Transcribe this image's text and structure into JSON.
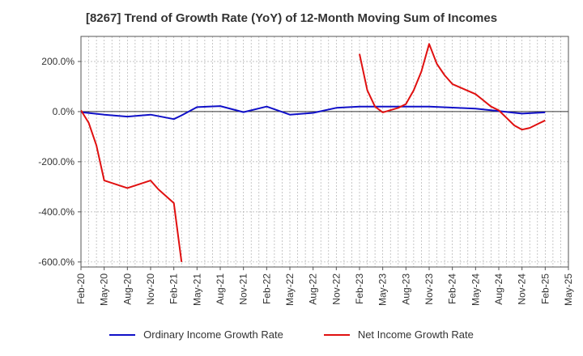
{
  "chart_data": {
    "type": "line",
    "title": "[8267]  Trend of Growth Rate (YoY) of 12-Month Moving Sum of Incomes",
    "xlabel": "",
    "ylabel": "",
    "ylim": [
      -620,
      300
    ],
    "y_ticks": [
      200,
      0,
      -200,
      -400,
      -600
    ],
    "y_tick_labels": [
      "200.0%",
      "0.0%",
      "-200.0%",
      "-400.0%",
      "-600.0%"
    ],
    "x_tick_labels": [
      "Feb-20",
      "May-20",
      "Aug-20",
      "Nov-20",
      "Feb-21",
      "May-21",
      "Aug-21",
      "Nov-21",
      "Feb-22",
      "May-22",
      "Aug-22",
      "Nov-22",
      "Feb-23",
      "May-23",
      "Aug-23",
      "Nov-23",
      "Feb-24",
      "May-24",
      "Aug-24",
      "Nov-24",
      "Feb-25",
      "May-25"
    ],
    "grid": true,
    "legend_position": "bottom",
    "series": [
      {
        "name": "Ordinary Income Growth Rate",
        "color": "#1010c8",
        "points": [
          [
            0,
            -2
          ],
          [
            3,
            -12
          ],
          [
            6,
            -20
          ],
          [
            9,
            -12
          ],
          [
            12,
            -30
          ],
          [
            13,
            -15
          ],
          [
            15,
            18
          ],
          [
            18,
            22
          ],
          [
            21,
            -2
          ],
          [
            24,
            20
          ],
          [
            27,
            -12
          ],
          [
            30,
            -5
          ],
          [
            33,
            15
          ],
          [
            36,
            20
          ],
          [
            39,
            20
          ],
          [
            42,
            20
          ],
          [
            45,
            20
          ],
          [
            48,
            16
          ],
          [
            51,
            12
          ],
          [
            54,
            2
          ],
          [
            57,
            -8
          ],
          [
            60,
            -3
          ]
        ]
      },
      {
        "name": "Net Income Growth Rate",
        "color": "#e01010",
        "points": [
          [
            0,
            5
          ],
          [
            1,
            -45
          ],
          [
            2,
            -135
          ],
          [
            3,
            -275
          ],
          [
            6,
            -305
          ],
          [
            9,
            -275
          ],
          [
            10,
            -310
          ],
          [
            12,
            -365
          ],
          [
            13,
            -600
          ],
          [
            36,
            230
          ],
          [
            37,
            85
          ],
          [
            38,
            20
          ],
          [
            39,
            -3
          ],
          [
            41,
            15
          ],
          [
            42,
            30
          ],
          [
            43,
            85
          ],
          [
            44,
            160
          ],
          [
            45,
            270
          ],
          [
            46,
            190
          ],
          [
            47,
            145
          ],
          [
            48,
            110
          ],
          [
            51,
            70
          ],
          [
            52,
            45
          ],
          [
            53,
            20
          ],
          [
            54,
            5
          ],
          [
            55,
            -25
          ],
          [
            56,
            -55
          ],
          [
            57,
            -72
          ],
          [
            58,
            -65
          ],
          [
            59,
            -50
          ],
          [
            60,
            -35
          ]
        ]
      }
    ]
  }
}
